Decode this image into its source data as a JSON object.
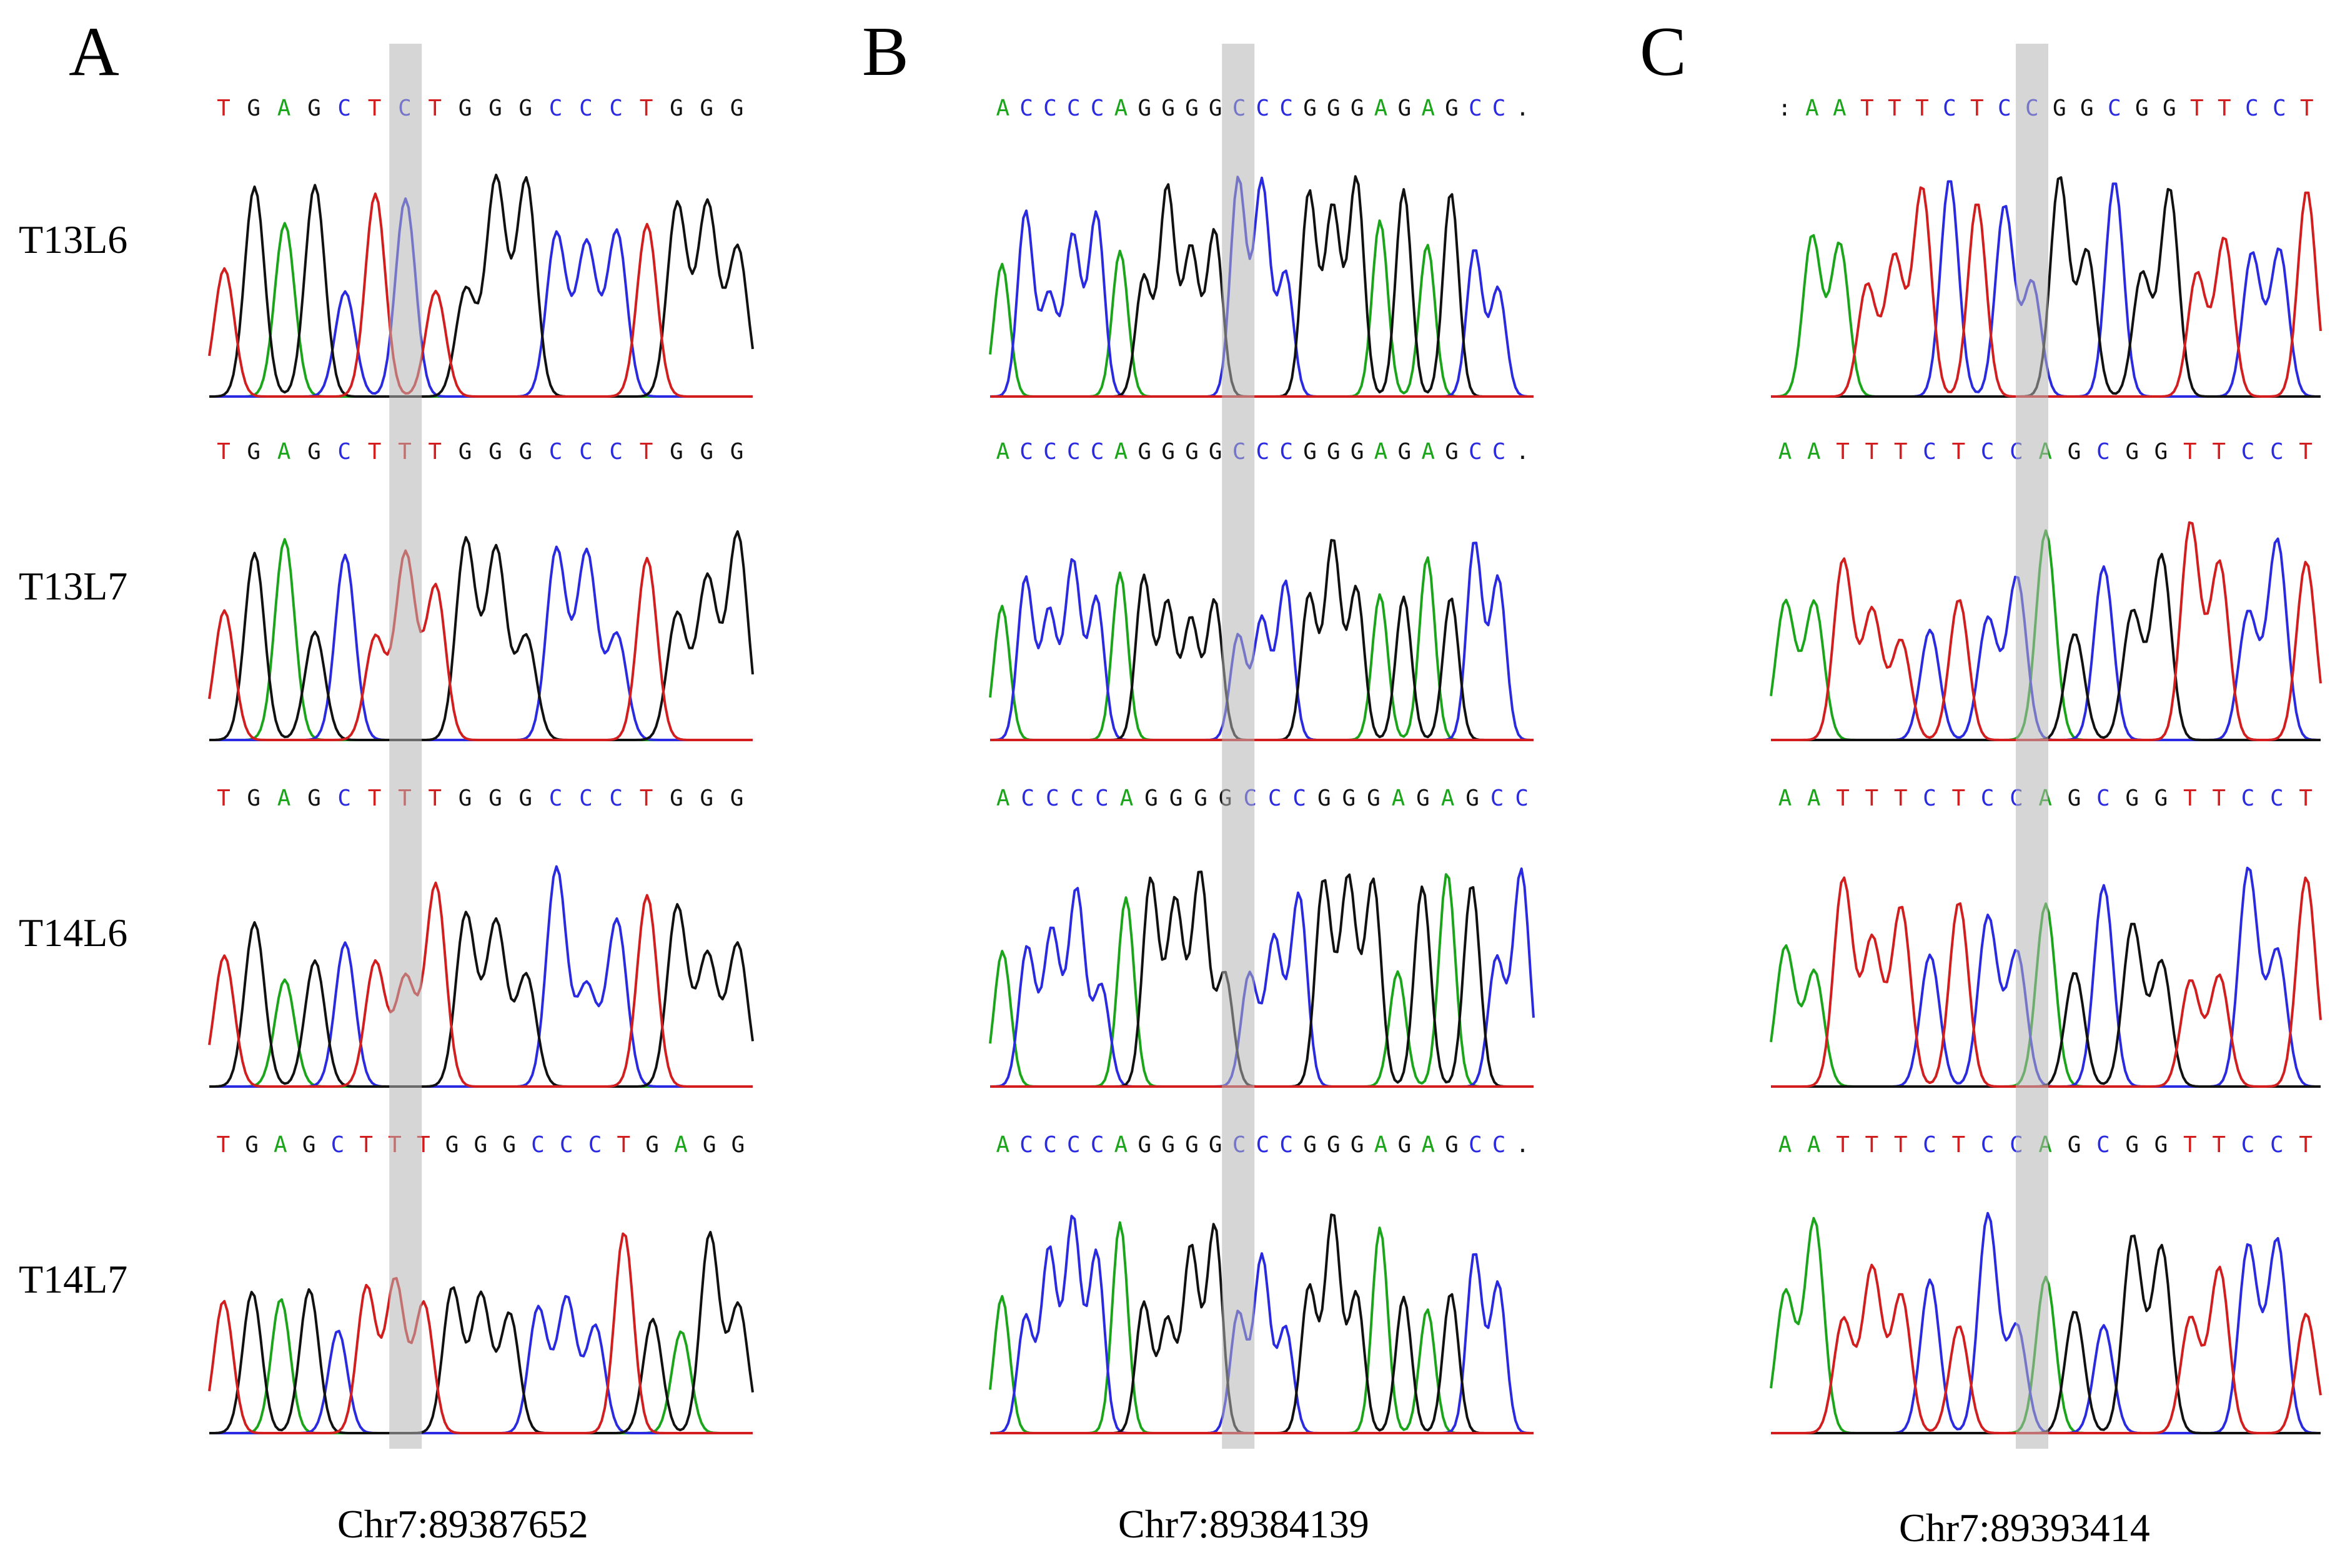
{
  "colors": {
    "A": "#1aa51a",
    "C": "#2a2ae0",
    "G": "#111111",
    "T": "#d21e1e",
    "highlight": "#b4b4b4"
  },
  "samples": [
    "T13L6",
    "T13L7",
    "T14L6",
    "T14L7"
  ],
  "panels": [
    {
      "letter": "A",
      "locus": "Chr7:89387652",
      "highlight_index": 6,
      "rows": [
        {
          "sample": "T13L6",
          "sequence": "TGAGCTCTGGGCCCTGGG"
        },
        {
          "sample": "T13L7",
          "sequence": "TGAGCTTTGGGCCCTGGG"
        },
        {
          "sample": "T14L6",
          "sequence": "TGAGCTTTGGGCCCTGGG"
        },
        {
          "sample": "T14L7",
          "sequence": "TGAGCTTTGGGCCCTGAGG"
        }
      ]
    },
    {
      "letter": "B",
      "locus": "Chr7:89384139",
      "highlight_index": 10,
      "rows": [
        {
          "sample": "T13L6",
          "sequence": "ACCCCAGGGGCCCGGGAGAGCC."
        },
        {
          "sample": "T13L7",
          "sequence": "ACCCCAGGGGCCCGGGAGAGCC."
        },
        {
          "sample": "T14L6",
          "sequence": "ACCCCAGGGGCCCGGGAGAGCC"
        },
        {
          "sample": "T14L7",
          "sequence": "ACCCCAGGGGCCCGGGAGAGCC."
        }
      ]
    },
    {
      "letter": "C",
      "locus": "Chr7:89393414",
      "highlight_index": 9,
      "rows": [
        {
          "sample": "T13L6",
          "sequence": ":AATTTCTCCGGCGGTTCCT"
        },
        {
          "sample": "T13L7",
          "sequence": "AATTTCTCCAGCGGTTCCT"
        },
        {
          "sample": "T14L6",
          "sequence": "AATTTCTCCAGCGGTTCCT"
        },
        {
          "sample": "T14L7",
          "sequence": "AATTTCTCCAGCGGTTCCT"
        }
      ]
    }
  ]
}
